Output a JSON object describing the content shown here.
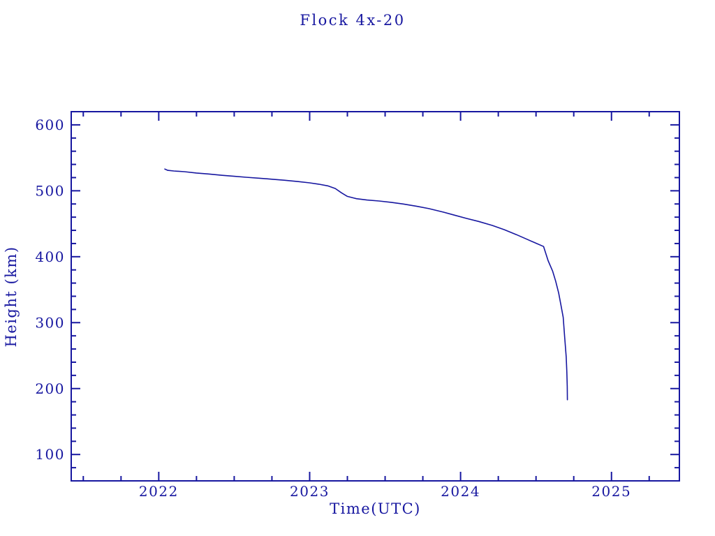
{
  "colors": {
    "ink": "#1717a0",
    "background": "#ffffff"
  },
  "chart_data": {
    "type": "line",
    "title": "Flock 4x-20",
    "xlabel": "Time(UTC)",
    "ylabel": "Height (km)",
    "xlim": [
      2021.42,
      2025.45
    ],
    "ylim": [
      60,
      620
    ],
    "x_major_ticks": [
      2022,
      2023,
      2024,
      2025
    ],
    "x_minor_step": 0.25,
    "y_major_ticks": [
      100,
      200,
      300,
      400,
      500,
      600
    ],
    "y_minor_step": 20,
    "grid": false,
    "legend": false,
    "line_color": "#1717a0",
    "series": [
      {
        "name": "height_km",
        "points": [
          [
            2022.04,
            533
          ],
          [
            2022.06,
            531
          ],
          [
            2022.1,
            530
          ],
          [
            2022.17,
            529
          ],
          [
            2022.25,
            527
          ],
          [
            2022.33,
            525.5
          ],
          [
            2022.42,
            523.5
          ],
          [
            2022.5,
            522
          ],
          [
            2022.58,
            520.5
          ],
          [
            2022.67,
            519
          ],
          [
            2022.75,
            517.5
          ],
          [
            2022.83,
            516
          ],
          [
            2022.92,
            514
          ],
          [
            2023.0,
            512
          ],
          [
            2023.06,
            510
          ],
          [
            2023.12,
            507.5
          ],
          [
            2023.17,
            503.5
          ],
          [
            2023.21,
            497
          ],
          [
            2023.25,
            491.5
          ],
          [
            2023.31,
            488
          ],
          [
            2023.38,
            486
          ],
          [
            2023.46,
            484.5
          ],
          [
            2023.54,
            482.5
          ],
          [
            2023.62,
            480
          ],
          [
            2023.71,
            476.5
          ],
          [
            2023.79,
            473
          ],
          [
            2023.88,
            468
          ],
          [
            2023.96,
            463
          ],
          [
            2024.04,
            458
          ],
          [
            2024.12,
            453.5
          ],
          [
            2024.21,
            447.5
          ],
          [
            2024.29,
            441
          ],
          [
            2024.37,
            433.5
          ],
          [
            2024.44,
            426.5
          ],
          [
            2024.5,
            420.5
          ],
          [
            2024.55,
            415.5
          ],
          [
            2024.58,
            394
          ],
          [
            2024.61,
            378
          ],
          [
            2024.63,
            363
          ],
          [
            2024.65,
            345
          ],
          [
            2024.665,
            327
          ],
          [
            2024.68,
            308
          ],
          [
            2024.69,
            278
          ],
          [
            2024.7,
            248
          ],
          [
            2024.704,
            225
          ],
          [
            2024.707,
            203
          ],
          [
            2024.708,
            183
          ]
        ]
      }
    ]
  }
}
